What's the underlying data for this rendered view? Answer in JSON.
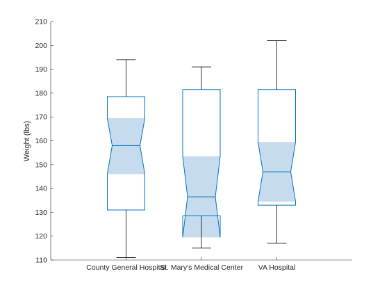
{
  "chart_data": {
    "type": "box",
    "ylabel": "Weight (lbs)",
    "xlabel": "",
    "title": "",
    "ylim": [
      110,
      210
    ],
    "yticks": [
      110,
      120,
      130,
      140,
      150,
      160,
      170,
      180,
      190,
      200,
      210
    ],
    "grid": false,
    "categories": [
      "County General Hospital",
      "St. Mary's Medical Center",
      "VA Hospital"
    ],
    "boxes": [
      {
        "name": "County General Hospital",
        "whisker_low": 111,
        "q1": 131,
        "notch_low": 146,
        "median": 158,
        "notch_high": 169.5,
        "q3": 178.5,
        "whisker_high": 194
      },
      {
        "name": "St. Mary's Medical Center",
        "whisker_low": 115,
        "q1": 128.5,
        "notch_low": 119.5,
        "median": 136.5,
        "notch_high": 153.5,
        "q3": 181.5,
        "whisker_high": 191
      },
      {
        "name": "VA Hospital",
        "whisker_low": 117,
        "q1": 133,
        "notch_low": 134.5,
        "median": 147,
        "notch_high": 159.5,
        "q3": 181.5,
        "whisker_high": 202
      }
    ],
    "colors": {
      "box_edge": "#0072bd",
      "notch_fill": "#c6dcee",
      "whisker": "#000000",
      "axis": "#262626"
    }
  }
}
